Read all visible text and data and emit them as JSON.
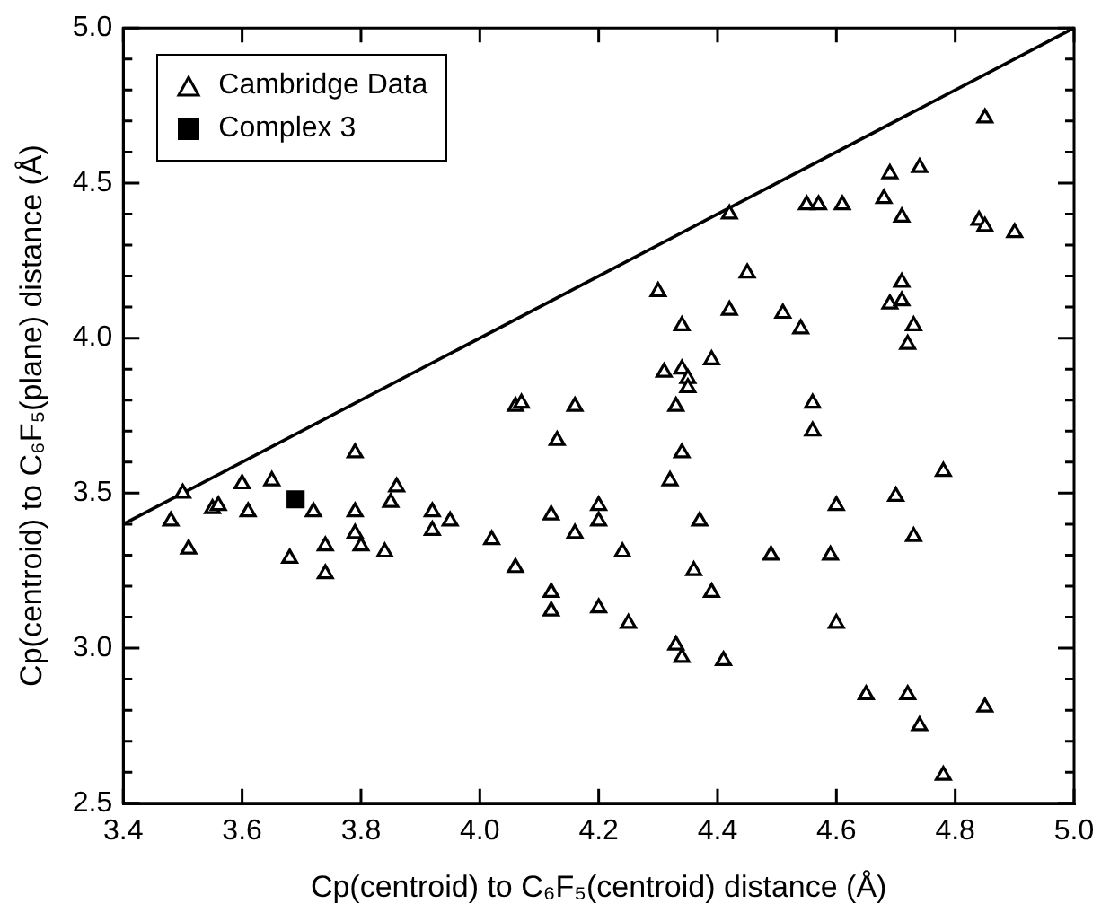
{
  "chart_data": {
    "type": "scatter",
    "xlabel": "Cp(centroid) to C₆F₅(centroid) distance (Å)",
    "ylabel": "Cp(centroid) to C₆F₅(plane) distance (Å)",
    "xlim": [
      3.4,
      5.0
    ],
    "ylim": [
      2.5,
      5.0
    ],
    "xticks": [
      3.4,
      3.6,
      3.8,
      {
        "value": 4,
        "label": "4.0"
      },
      4.2,
      4.4,
      4.6,
      4.8,
      {
        "value": 5,
        "label": "5.0"
      }
    ],
    "yticks": [
      2.5,
      {
        "value": 2.6,
        "label": null
      },
      {
        "value": 2.7,
        "label": null
      },
      {
        "value": 2.8,
        "label": null
      },
      {
        "value": 2.9,
        "label": null
      },
      {
        "value": 3,
        "label": "3.0"
      },
      {
        "value": 3.1,
        "label": null
      },
      {
        "value": 3.2,
        "label": null
      },
      {
        "value": 3.3,
        "label": null
      },
      {
        "value": 3.4,
        "label": null
      },
      3.5,
      {
        "value": 3.6,
        "label": null
      },
      {
        "value": 3.7,
        "label": null
      },
      {
        "value": 3.8,
        "label": null
      },
      {
        "value": 3.9,
        "label": null
      },
      {
        "value": 4,
        "label": "4.0"
      },
      {
        "value": 4.1,
        "label": null
      },
      {
        "value": 4.2,
        "label": null
      },
      {
        "value": 4.3,
        "label": null
      },
      {
        "value": 4.4,
        "label": null
      },
      4.5,
      {
        "value": 4.6,
        "label": null
      },
      {
        "value": 4.7,
        "label": null
      },
      {
        "value": 4.8,
        "label": null
      },
      {
        "value": 4.9,
        "label": null
      },
      {
        "value": 5,
        "label": "5.0"
      }
    ],
    "legend": "top left",
    "series": [
      {
        "name": "Cambridge Data",
        "color": "#000000",
        "marker": "triangle",
        "x": [
          3.48,
          3.5,
          3.51,
          3.55,
          3.56,
          3.6,
          3.61,
          3.65,
          3.68,
          3.72,
          3.74,
          3.74,
          3.79,
          3.79,
          3.79,
          3.8,
          3.84,
          3.85,
          3.86,
          3.92,
          3.92,
          3.95,
          4.02,
          4.06,
          4.06,
          4.42,
          4.45,
          4.3,
          4.42,
          4.51,
          4.54,
          4.34,
          4.39,
          4.31,
          4.34,
          4.35,
          4.35,
          4.07,
          4.16,
          4.33,
          4.56,
          4.56,
          4.13,
          4.34,
          4.32,
          4.12,
          4.2,
          4.2,
          4.37,
          4.6,
          4.16,
          4.24,
          4.36,
          4.49,
          4.59,
          4.12,
          4.12,
          4.2,
          4.39,
          4.25,
          4.6,
          4.33,
          4.34,
          4.41,
          4.61,
          4.55,
          4.57,
          4.69,
          4.74,
          4.68,
          4.71,
          4.84,
          4.85,
          4.9,
          4.85,
          4.71,
          4.69,
          4.71,
          4.73,
          4.72,
          4.78,
          4.7,
          4.73,
          4.65,
          4.72,
          4.85,
          4.74,
          4.78
        ],
        "values": [
          3.41,
          3.5,
          3.32,
          3.45,
          3.46,
          3.53,
          3.44,
          3.54,
          3.29,
          3.44,
          3.24,
          3.33,
          3.63,
          3.44,
          3.37,
          3.33,
          3.31,
          3.47,
          3.52,
          3.44,
          3.38,
          3.41,
          3.35,
          3.26,
          3.78,
          4.4,
          4.21,
          4.15,
          4.09,
          4.08,
          4.03,
          4.04,
          3.93,
          3.89,
          3.9,
          3.87,
          3.84,
          3.79,
          3.78,
          3.78,
          3.79,
          3.7,
          3.67,
          3.63,
          3.54,
          3.43,
          3.46,
          3.41,
          3.41,
          3.46,
          3.37,
          3.31,
          3.25,
          3.3,
          3.3,
          3.18,
          3.12,
          3.13,
          3.18,
          3.08,
          3.08,
          3.01,
          2.97,
          2.96,
          4.43,
          4.43,
          4.43,
          4.53,
          4.55,
          4.45,
          4.39,
          4.38,
          4.36,
          4.34,
          4.71,
          4.18,
          4.11,
          4.12,
          4.04,
          3.98,
          3.57,
          3.49,
          3.36,
          2.85,
          2.85,
          2.81,
          2.75,
          2.59
        ]
      },
      {
        "name": "Complex 3",
        "color": "#000000",
        "marker": "square",
        "x": [
          3.69
        ],
        "values": [
          3.48
        ]
      },
      {
        "type": "line",
        "color": "#000000",
        "marker": "none",
        "x": [
          3.4,
          5.0
        ],
        "values": [
          3.4,
          5.0
        ]
      }
    ]
  }
}
